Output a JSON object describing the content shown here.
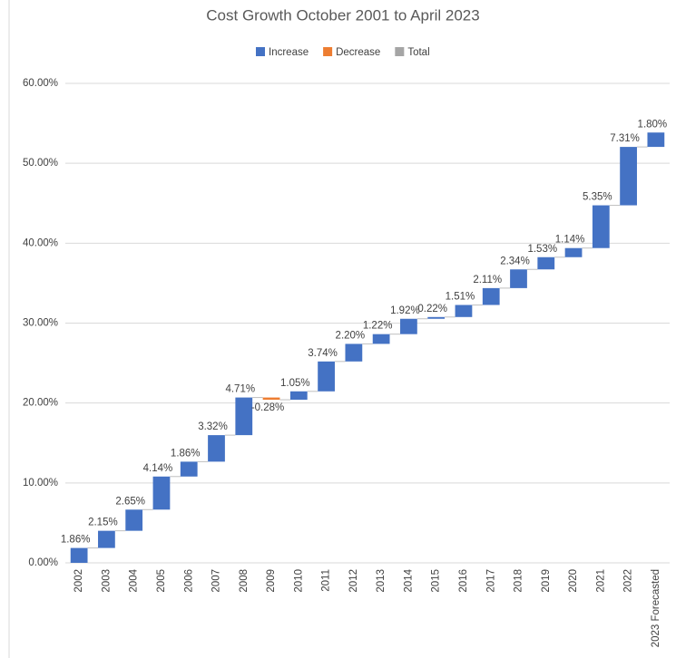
{
  "chart_data": {
    "type": "waterfall",
    "title": "Cost Growth October 2001 to April 2023",
    "legend": [
      {
        "name": "Increase",
        "color": "#4472c4"
      },
      {
        "name": "Decrease",
        "color": "#ed7d31"
      },
      {
        "name": "Total",
        "color": "#a5a5a5"
      }
    ],
    "categories": [
      "2002",
      "2003",
      "2004",
      "2005",
      "2006",
      "2007",
      "2008",
      "2009",
      "2010",
      "2011",
      "2012",
      "2013",
      "2014",
      "2015",
      "2016",
      "2017",
      "2018",
      "2019",
      "2020",
      "2021",
      "2022",
      "2023 Forecasted"
    ],
    "values": [
      1.86,
      2.15,
      2.65,
      4.14,
      1.86,
      3.32,
      4.71,
      -0.28,
      1.05,
      3.74,
      2.2,
      1.22,
      1.92,
      0.22,
      1.51,
      2.11,
      2.34,
      1.53,
      1.14,
      5.35,
      7.31,
      1.8
    ],
    "value_labels": [
      "1.86%",
      "2.15%",
      "2.65%",
      "4.14%",
      "1.86%",
      "3.32%",
      "4.71%",
      "-0.28%",
      "1.05%",
      "3.74%",
      "2.20%",
      "1.22%",
      "1.92%",
      "0.22%",
      "1.51%",
      "2.11%",
      "2.34%",
      "1.53%",
      "1.14%",
      "5.35%",
      "7.31%",
      "1.80%"
    ],
    "ylim": [
      0,
      60
    ],
    "yticks": [
      {
        "value": 0,
        "label": "0.00%"
      },
      {
        "value": 10,
        "label": "10.00%"
      },
      {
        "value": 20,
        "label": "20.00%"
      },
      {
        "value": 30,
        "label": "30.00%"
      },
      {
        "value": 40,
        "label": "40.00%"
      },
      {
        "value": 50,
        "label": "50.00%"
      },
      {
        "value": 60,
        "label": "60.00%"
      }
    ],
    "grid": true
  }
}
